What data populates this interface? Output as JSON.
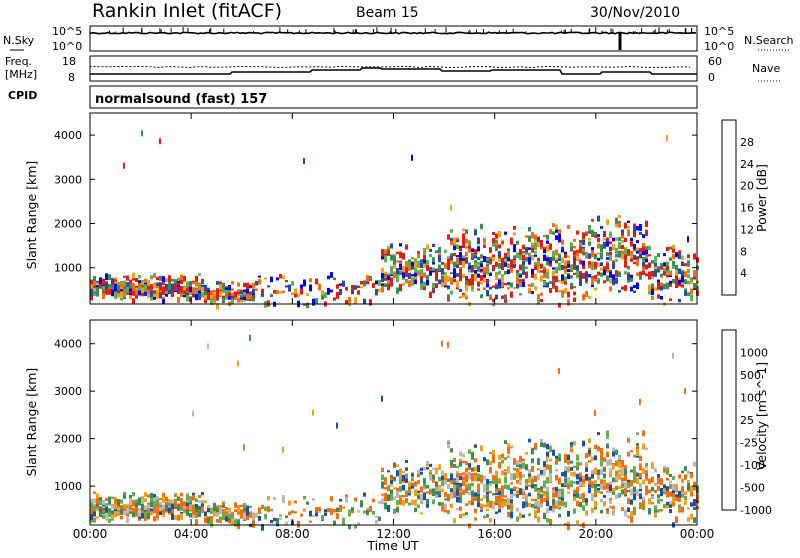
{
  "header": {
    "station": "Rankin Inlet (fitACF)",
    "beam": "Beam 15",
    "date": "30/Nov/2010"
  },
  "top_panel": {
    "left_label": "N.Sky",
    "right_label": "N.Search",
    "left_ticks": [
      "10^5",
      "10^0"
    ],
    "right_ticks": [
      "10^5",
      "10^0"
    ]
  },
  "freq_panel": {
    "label_line1": "Freq.",
    "label_line2": "[MHz]",
    "cpid_label": "CPID",
    "left_ticks": [
      "18",
      "8"
    ],
    "right_ticks": [
      "60",
      "0"
    ],
    "right_label": "Nave"
  },
  "cpid_text": "normalsound (fast) 157",
  "colors": {
    "c1": "#0000e6",
    "c2": "#1f4fa0",
    "c3": "#3a8a5a",
    "c4": "#60b050",
    "c5": "#b9b9b9",
    "c6": "#f0a020",
    "c7": "#f07010",
    "c8": "#e21c14"
  },
  "chart_data": [
    {
      "type": "heatmap",
      "name": "power",
      "ylabel": "Slant Range [km]",
      "yticks": [
        "1000",
        "2000",
        "3000",
        "4000"
      ],
      "ylim": [
        180,
        4500
      ],
      "colorbar_label": "Power [dB]",
      "colorbar_ticks": [
        "28",
        "24",
        "20",
        "16",
        "12",
        "8",
        "4"
      ],
      "colorbar_colors": [
        "#e21c14",
        "#f07010",
        "#f0a020",
        "#e6d020",
        "#60b050",
        "#3a8a5a",
        "#1f4fa0",
        "#0000e6"
      ]
    },
    {
      "type": "heatmap",
      "name": "velocity",
      "ylabel": "Slant Range [km]",
      "yticks": [
        "1000",
        "2000",
        "3000",
        "4000"
      ],
      "ylim": [
        180,
        4500
      ],
      "colorbar_label": "Velocity [m s^-1]",
      "colorbar_ticks": [
        "1000",
        "500",
        "100",
        "25",
        "-25",
        "-100",
        "-500",
        "-1000"
      ],
      "colorbar_colors": [
        "#1f4fa0",
        "#2e6a80",
        "#3a8a5a",
        "#60b050",
        "#b9b9b9",
        "#f0a020",
        "#f07010",
        "#e21c14"
      ]
    }
  ],
  "x_axis": {
    "ticks": [
      "00:00",
      "04:00",
      "08:00",
      "12:00",
      "16:00",
      "20:00",
      "00:00"
    ],
    "label": "Time UT"
  }
}
